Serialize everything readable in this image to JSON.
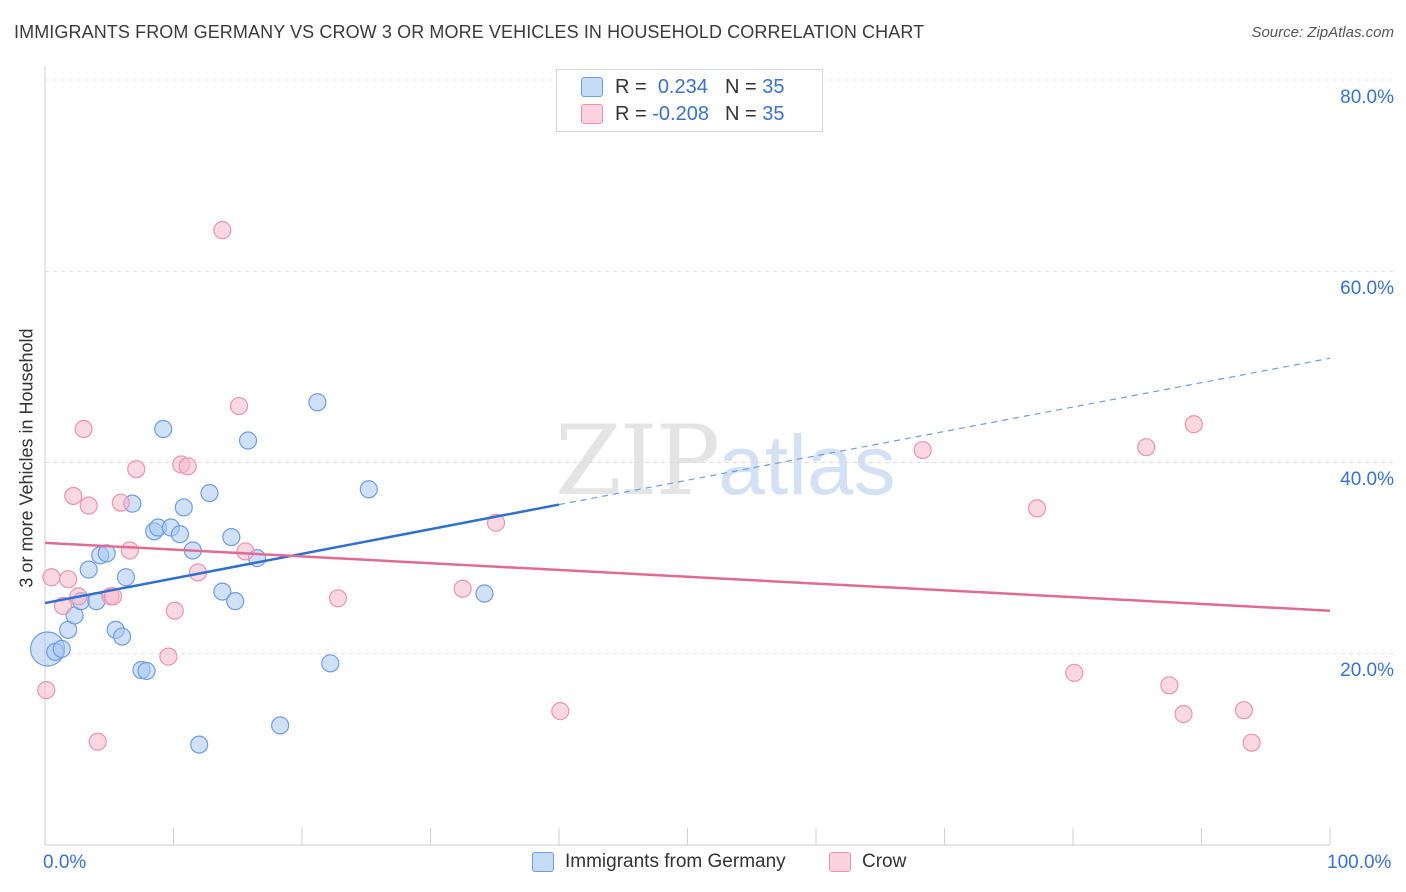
{
  "title": "IMMIGRANTS FROM GERMANY VS CROW 3 OR MORE VEHICLES IN HOUSEHOLD CORRELATION CHART",
  "source": "Source: ZipAtlas.com",
  "watermark": {
    "zip": "ZIP",
    "atlas": "atlas"
  },
  "legend_top": {
    "rows": [
      {
        "r_label": "R =",
        "r_value": "0.234",
        "n_label": "N =",
        "n_value": "35",
        "color": "#a8c8f0"
      },
      {
        "r_label": "R =",
        "r_value": "-0.208",
        "n_label": "N =",
        "n_value": "35",
        "color": "#f5b8cb"
      }
    ]
  },
  "colors": {
    "blue": "#4f86d8",
    "blue_fill": "#a9c8f0",
    "pink": "#e8709a",
    "pink_fill": "#f5b8cb",
    "axis_text": "#3a72c9"
  },
  "chart_data": {
    "type": "scatter",
    "title": "IMMIGRANTS FROM GERMANY VS CROW 3 OR MORE VEHICLES IN HOUSEHOLD CORRELATION CHART",
    "xlabel": "",
    "ylabel": "3 or more Vehicles in Household",
    "xlim": [
      0,
      100
    ],
    "ylim": [
      0,
      80
    ],
    "x_ticks": [
      "0.0%",
      "100.0%"
    ],
    "y_ticks": [
      {
        "value": 20,
        "label": "20.0%"
      },
      {
        "value": 40,
        "label": "40.0%"
      },
      {
        "value": 60,
        "label": "60.0%"
      },
      {
        "value": 80,
        "label": "80.0%"
      }
    ],
    "grid": true,
    "legend_position": "bottom",
    "series": [
      {
        "name": "Immigrants from Germany",
        "color": "#4f86d8",
        "points": [
          [
            0.2,
            20.5
          ],
          [
            0.8,
            20.2
          ],
          [
            1.3,
            20.5
          ],
          [
            1.8,
            22.5
          ],
          [
            2.3,
            24.0
          ],
          [
            2.8,
            25.5
          ],
          [
            3.4,
            28.8
          ],
          [
            4.0,
            25.5
          ],
          [
            4.3,
            30.3
          ],
          [
            4.8,
            30.5
          ],
          [
            5.5,
            22.5
          ],
          [
            6.0,
            21.8
          ],
          [
            6.3,
            28.0
          ],
          [
            6.8,
            35.7
          ],
          [
            7.5,
            18.3
          ],
          [
            7.9,
            18.2
          ],
          [
            8.5,
            32.8
          ],
          [
            8.8,
            33.2
          ],
          [
            9.2,
            43.5
          ],
          [
            9.8,
            33.2
          ],
          [
            10.5,
            32.5
          ],
          [
            10.8,
            35.3
          ],
          [
            11.5,
            30.8
          ],
          [
            12.0,
            10.5
          ],
          [
            12.8,
            36.8
          ],
          [
            13.8,
            26.5
          ],
          [
            14.5,
            32.2
          ],
          [
            14.8,
            25.5
          ],
          [
            15.8,
            42.3
          ],
          [
            16.5,
            30.0
          ],
          [
            18.3,
            12.5
          ],
          [
            21.2,
            46.3
          ],
          [
            22.2,
            19.0
          ],
          [
            25.2,
            37.2
          ],
          [
            34.2,
            26.3
          ]
        ]
      },
      {
        "name": "Crow",
        "color": "#e8709a",
        "points": [
          [
            0.1,
            16.2
          ],
          [
            0.5,
            28.0
          ],
          [
            1.4,
            25.0
          ],
          [
            1.8,
            27.8
          ],
          [
            2.2,
            36.5
          ],
          [
            2.6,
            26.0
          ],
          [
            3.0,
            43.5
          ],
          [
            3.4,
            35.5
          ],
          [
            4.1,
            10.8
          ],
          [
            5.1,
            26.0
          ],
          [
            5.3,
            26.0
          ],
          [
            5.9,
            35.8
          ],
          [
            6.6,
            30.8
          ],
          [
            7.1,
            39.3
          ],
          [
            9.6,
            19.7
          ],
          [
            10.1,
            24.5
          ],
          [
            10.6,
            39.8
          ],
          [
            11.1,
            39.6
          ],
          [
            11.9,
            28.5
          ],
          [
            13.8,
            64.3
          ],
          [
            15.1,
            45.9
          ],
          [
            15.6,
            30.7
          ],
          [
            22.8,
            25.8
          ],
          [
            32.5,
            26.8
          ],
          [
            35.1,
            33.7
          ],
          [
            40.1,
            14.0
          ],
          [
            68.3,
            41.3
          ],
          [
            77.2,
            35.2
          ],
          [
            80.1,
            18.0
          ],
          [
            85.7,
            41.6
          ],
          [
            87.5,
            16.7
          ],
          [
            88.6,
            13.7
          ],
          [
            89.4,
            44.0
          ],
          [
            93.3,
            14.1
          ],
          [
            93.9,
            10.7
          ]
        ]
      }
    ],
    "trend_lines": [
      {
        "series": "Immigrants from Germany",
        "x": [
          0,
          40
        ],
        "y": [
          25.3,
          35.6
        ],
        "extended_x": [
          40,
          100
        ],
        "extended_y": [
          35.6,
          50.9
        ]
      },
      {
        "series": "Crow",
        "x": [
          0,
          100
        ],
        "y": [
          31.6,
          24.5
        ]
      }
    ]
  }
}
